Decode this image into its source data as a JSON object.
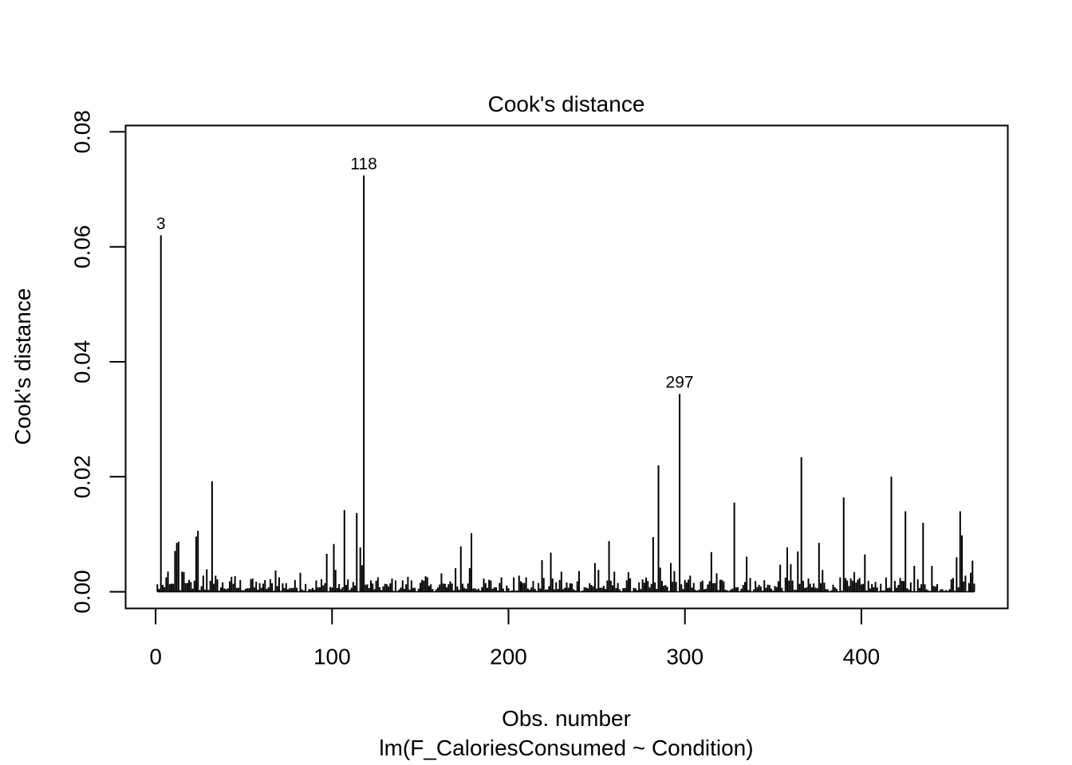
{
  "chart_data": {
    "type": "bar",
    "title": "Cook's distance",
    "xlabel": "Obs. number",
    "subtitle": "lm(F_CaloriesConsumed ~ Condition)",
    "ylabel": "Cook's distance",
    "xlim": [
      -17,
      483
    ],
    "ylim": [
      -0.0029,
      0.0811
    ],
    "xticks": [
      0,
      100,
      200,
      300,
      400
    ],
    "yticks": [
      0,
      0.02,
      0.04,
      0.06,
      0.08
    ],
    "xtick_labels": [
      "0",
      "100",
      "200",
      "300",
      "400"
    ],
    "ytick_labels": [
      "0.00",
      "0.02",
      "0.04",
      "0.06",
      "0.08"
    ],
    "n": 464,
    "spikes": [
      {
        "x": 3,
        "y": 0.062
      },
      {
        "x": 5,
        "y": 0.0008
      },
      {
        "x": 7,
        "y": 0.0035
      },
      {
        "x": 8,
        "y": 0.0013
      },
      {
        "x": 11,
        "y": 0.0071
      },
      {
        "x": 12,
        "y": 0.0085
      },
      {
        "x": 13,
        "y": 0.0087
      },
      {
        "x": 15,
        "y": 0.0035
      },
      {
        "x": 16,
        "y": 0.0034
      },
      {
        "x": 23,
        "y": 0.0096
      },
      {
        "x": 24,
        "y": 0.0106
      },
      {
        "x": 27,
        "y": 0.0028
      },
      {
        "x": 29,
        "y": 0.0039
      },
      {
        "x": 32,
        "y": 0.0192
      },
      {
        "x": 34,
        "y": 0.0028
      },
      {
        "x": 43,
        "y": 0.0026
      },
      {
        "x": 45,
        "y": 0.0027
      },
      {
        "x": 54,
        "y": 0.0022
      },
      {
        "x": 59,
        "y": 0.0015
      },
      {
        "x": 68,
        "y": 0.0037
      },
      {
        "x": 70,
        "y": 0.0025
      },
      {
        "x": 82,
        "y": 0.0033
      },
      {
        "x": 97,
        "y": 0.0066
      },
      {
        "x": 101,
        "y": 0.0083
      },
      {
        "x": 102,
        "y": 0.0038
      },
      {
        "x": 107,
        "y": 0.0142
      },
      {
        "x": 108,
        "y": 0.0012
      },
      {
        "x": 114,
        "y": 0.0137
      },
      {
        "x": 116,
        "y": 0.0077
      },
      {
        "x": 117,
        "y": 0.0046
      },
      {
        "x": 118,
        "y": 0.0724
      },
      {
        "x": 134,
        "y": 0.0023
      },
      {
        "x": 143,
        "y": 0.0026
      },
      {
        "x": 153,
        "y": 0.0027
      },
      {
        "x": 162,
        "y": 0.0032
      },
      {
        "x": 170,
        "y": 0.0041
      },
      {
        "x": 173,
        "y": 0.0079
      },
      {
        "x": 178,
        "y": 0.0041
      },
      {
        "x": 179,
        "y": 0.0102
      },
      {
        "x": 196,
        "y": 0.0025
      },
      {
        "x": 203,
        "y": 0.0025
      },
      {
        "x": 206,
        "y": 0.0028
      },
      {
        "x": 210,
        "y": 0.0025
      },
      {
        "x": 219,
        "y": 0.0055
      },
      {
        "x": 224,
        "y": 0.0068
      },
      {
        "x": 230,
        "y": 0.0035
      },
      {
        "x": 240,
        "y": 0.0036
      },
      {
        "x": 249,
        "y": 0.005
      },
      {
        "x": 251,
        "y": 0.0038
      },
      {
        "x": 257,
        "y": 0.0088
      },
      {
        "x": 260,
        "y": 0.0035
      },
      {
        "x": 268,
        "y": 0.0034
      },
      {
        "x": 282,
        "y": 0.0095
      },
      {
        "x": 285,
        "y": 0.022
      },
      {
        "x": 286,
        "y": 0.0042
      },
      {
        "x": 292,
        "y": 0.005
      },
      {
        "x": 294,
        "y": 0.0036
      },
      {
        "x": 297,
        "y": 0.0344
      },
      {
        "x": 303,
        "y": 0.0028
      },
      {
        "x": 315,
        "y": 0.0069
      },
      {
        "x": 318,
        "y": 0.0032
      },
      {
        "x": 328,
        "y": 0.0155
      },
      {
        "x": 335,
        "y": 0.0061
      },
      {
        "x": 337,
        "y": 0.0024
      },
      {
        "x": 354,
        "y": 0.0047
      },
      {
        "x": 358,
        "y": 0.0077
      },
      {
        "x": 360,
        "y": 0.0048
      },
      {
        "x": 364,
        "y": 0.007
      },
      {
        "x": 366,
        "y": 0.0234
      },
      {
        "x": 376,
        "y": 0.0085
      },
      {
        "x": 378,
        "y": 0.0038
      },
      {
        "x": 388,
        "y": 0.0025
      },
      {
        "x": 390,
        "y": 0.0164
      },
      {
        "x": 396,
        "y": 0.0034
      },
      {
        "x": 402,
        "y": 0.0065
      },
      {
        "x": 417,
        "y": 0.02
      },
      {
        "x": 425,
        "y": 0.014
      },
      {
        "x": 430,
        "y": 0.0045
      },
      {
        "x": 435,
        "y": 0.012
      },
      {
        "x": 440,
        "y": 0.0045
      },
      {
        "x": 452,
        "y": 0.0024
      },
      {
        "x": 454,
        "y": 0.006
      },
      {
        "x": 456,
        "y": 0.014
      },
      {
        "x": 457,
        "y": 0.0098
      },
      {
        "x": 459,
        "y": 0.0028
      },
      {
        "x": 462,
        "y": 0.0033
      },
      {
        "x": 463,
        "y": 0.0054
      }
    ],
    "labeled_points": [
      {
        "x": 3,
        "y": 0.062,
        "label": "3"
      },
      {
        "x": 118,
        "y": 0.0724,
        "label": "118"
      },
      {
        "x": 297,
        "y": 0.0344,
        "label": "297"
      }
    ],
    "grid": false,
    "legend": "none"
  }
}
